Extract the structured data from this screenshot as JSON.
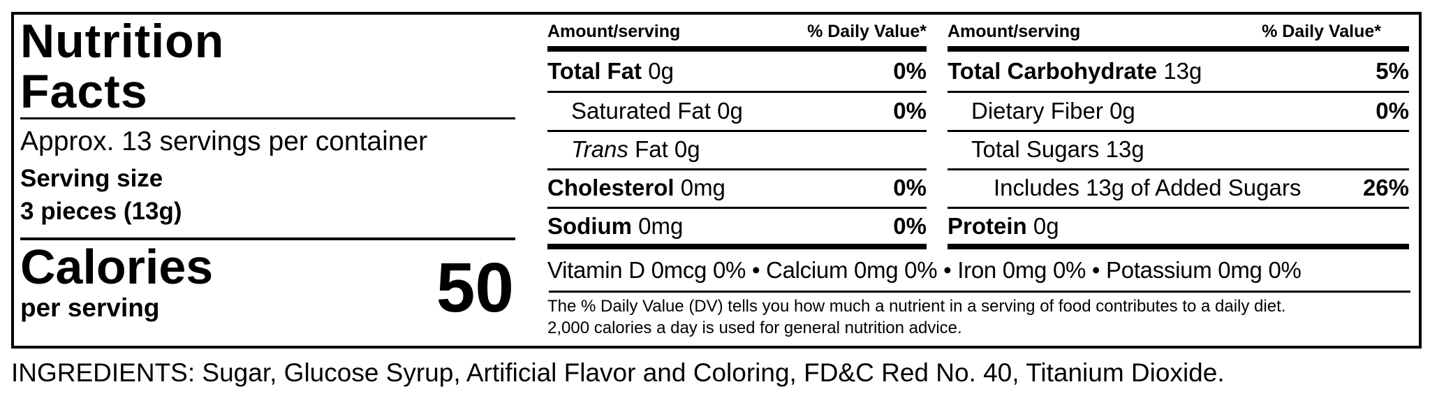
{
  "title_line1": "Nutrition",
  "title_line2": "Facts",
  "servings_per_container": "Approx. 13 servings per container",
  "serving_size_label": "Serving size",
  "serving_size_value": "3 pieces (13g)",
  "calories_label": "Calories",
  "calories_sublabel": "per serving",
  "calories_value": "50",
  "left_table": {
    "header_amount": "Amount/serving",
    "header_dv": "% Daily Value*",
    "rows": [
      {
        "name": "Total Fat",
        "amount": "0g",
        "dv": "0%",
        "bold": true
      },
      {
        "name": "Saturated Fat",
        "amount": "0g",
        "dv": "0%",
        "bold": false
      },
      {
        "name": "Trans",
        "amount": "Fat 0g",
        "dv": "",
        "bold": false
      },
      {
        "name": "Cholesterol",
        "amount": "0mg",
        "dv": "0%",
        "bold": true
      },
      {
        "name": "Sodium",
        "amount": "0mg",
        "dv": "0%",
        "bold": true
      }
    ]
  },
  "right_table": {
    "header_amount": "Amount/serving",
    "header_dv": "% Daily Value*",
    "rows": [
      {
        "name": "Total Carbohydrate",
        "amount": "13g",
        "dv": "5%",
        "bold": true
      },
      {
        "name": "Dietary Fiber",
        "amount": "0g",
        "dv": "0%",
        "bold": false
      },
      {
        "name": "Total Sugars",
        "amount": "13g",
        "dv": "",
        "bold": false
      },
      {
        "name": "Includes 13g of Added Sugars",
        "amount": "",
        "dv": "26%",
        "bold": false
      },
      {
        "name": "Protein",
        "amount": "0g",
        "dv": "",
        "bold": true
      }
    ]
  },
  "vitamins": "Vitamin D 0mcg 0% • Calcium 0mg 0% • Iron 0mg 0% • Potassium 0mg 0%",
  "footnote_line1": "The % Daily Value (DV) tells you how much a nutrient in a serving of food contributes to a daily diet.",
  "footnote_line2": "2,000 calories a day is used for general nutrition advice.",
  "ingredients": "INGREDIENTS: Sugar, Glucose Syrup, Artificial Flavor and Coloring, FD&C Red No. 40, Titanium Dioxide."
}
